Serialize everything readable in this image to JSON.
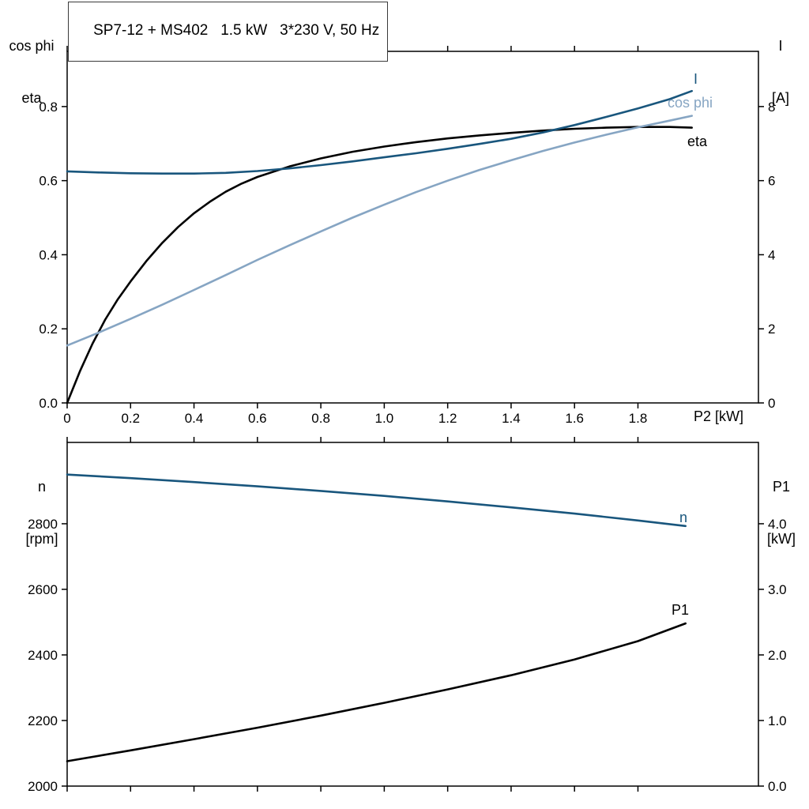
{
  "title": {
    "text": "SP7-12 + MS402   1.5 kW   3*230 V, 50 Hz"
  },
  "axis_titles": {
    "top_left_1": "cos phi",
    "top_left_2": "eta",
    "top_right_1": "I",
    "top_right_2": "[A]",
    "x_label": "P2 [kW]",
    "bottom_left_1": "n",
    "bottom_left_2": "[rpm]",
    "bottom_right_1": "P1",
    "bottom_right_2": "[kW]"
  },
  "curve_labels": {
    "i": "I",
    "cos_phi": "cos phi",
    "eta": "eta",
    "n": "n",
    "p1": "P1"
  },
  "colors": {
    "dark_blue": "#19567d",
    "light_blue": "#86a5c3",
    "black": "#000000",
    "frame": "#000000"
  },
  "chart_data": [
    {
      "type": "line",
      "grid": false,
      "xlim": [
        0,
        2.18
      ],
      "left_lim": [
        0,
        0.949
      ],
      "right_lim": [
        0,
        9.49
      ],
      "x_ticks": [
        {
          "v": 0,
          "label": "0"
        },
        {
          "v": 0.2,
          "label": "0.2"
        },
        {
          "v": 0.4,
          "label": "0.4"
        },
        {
          "v": 0.6,
          "label": "0.6"
        },
        {
          "v": 0.8,
          "label": "0.8"
        },
        {
          "v": 1.0,
          "label": "1.0"
        },
        {
          "v": 1.2,
          "label": "1.2"
        },
        {
          "v": 1.4,
          "label": "1.4"
        },
        {
          "v": 1.6,
          "label": "1.6"
        },
        {
          "v": 1.8,
          "label": "1.8"
        }
      ],
      "left_ticks": [
        {
          "v": 0.0,
          "label": "0.0"
        },
        {
          "v": 0.2,
          "label": "0.2"
        },
        {
          "v": 0.4,
          "label": "0.4"
        },
        {
          "v": 0.6,
          "label": "0.6"
        },
        {
          "v": 0.8,
          "label": "0.8"
        }
      ],
      "right_ticks": [
        {
          "v": 0,
          "label": "0"
        },
        {
          "v": 2,
          "label": "2"
        },
        {
          "v": 4,
          "label": "4"
        },
        {
          "v": 6,
          "label": "6"
        },
        {
          "v": 8,
          "label": "8"
        }
      ],
      "series": [
        {
          "name": "eta",
          "axis": "left",
          "color": "#000000",
          "x": [
            0,
            0.04,
            0.08,
            0.12,
            0.16,
            0.2,
            0.25,
            0.3,
            0.35,
            0.4,
            0.45,
            0.5,
            0.55,
            0.6,
            0.7,
            0.8,
            0.9,
            1.0,
            1.1,
            1.2,
            1.3,
            1.4,
            1.5,
            1.6,
            1.7,
            1.8,
            1.9,
            1.97
          ],
          "y": [
            0,
            0.085,
            0.16,
            0.225,
            0.28,
            0.328,
            0.383,
            0.432,
            0.475,
            0.512,
            0.543,
            0.57,
            0.592,
            0.61,
            0.638,
            0.66,
            0.678,
            0.692,
            0.704,
            0.714,
            0.722,
            0.729,
            0.735,
            0.74,
            0.743,
            0.745,
            0.745,
            0.743
          ]
        },
        {
          "name": "cos-phi",
          "axis": "left",
          "color": "#86a5c3",
          "x": [
            0,
            0.1,
            0.2,
            0.3,
            0.4,
            0.5,
            0.6,
            0.7,
            0.8,
            0.9,
            1.0,
            1.1,
            1.2,
            1.3,
            1.4,
            1.5,
            1.6,
            1.7,
            1.8,
            1.9,
            1.97
          ],
          "y": [
            0.155,
            0.19,
            0.227,
            0.265,
            0.305,
            0.345,
            0.386,
            0.425,
            0.463,
            0.5,
            0.535,
            0.569,
            0.6,
            0.629,
            0.655,
            0.68,
            0.703,
            0.724,
            0.744,
            0.762,
            0.775
          ]
        },
        {
          "name": "current-I",
          "axis": "right",
          "color": "#19567d",
          "x": [
            0,
            0.1,
            0.2,
            0.3,
            0.4,
            0.5,
            0.6,
            0.7,
            0.8,
            0.9,
            1.0,
            1.1,
            1.2,
            1.3,
            1.4,
            1.5,
            1.6,
            1.7,
            1.8,
            1.9,
            1.97
          ],
          "y": [
            6.25,
            6.22,
            6.2,
            6.19,
            6.19,
            6.21,
            6.26,
            6.33,
            6.42,
            6.52,
            6.63,
            6.74,
            6.86,
            6.99,
            7.13,
            7.3,
            7.5,
            7.72,
            7.95,
            8.2,
            8.42
          ]
        }
      ]
    },
    {
      "type": "line",
      "grid": false,
      "xlim": [
        0,
        2.18
      ],
      "left_lim": [
        2000,
        3048
      ],
      "right_lim": [
        0,
        5.24
      ],
      "x_ticks": [
        {
          "v": 0,
          "label": ""
        },
        {
          "v": 0.2,
          "label": ""
        },
        {
          "v": 0.4,
          "label": ""
        },
        {
          "v": 0.6,
          "label": ""
        },
        {
          "v": 0.8,
          "label": ""
        },
        {
          "v": 1.0,
          "label": ""
        },
        {
          "v": 1.2,
          "label": ""
        },
        {
          "v": 1.4,
          "label": ""
        },
        {
          "v": 1.6,
          "label": ""
        },
        {
          "v": 1.8,
          "label": ""
        }
      ],
      "left_ticks": [
        {
          "v": 2000,
          "label": "2000"
        },
        {
          "v": 2200,
          "label": "2200"
        },
        {
          "v": 2400,
          "label": "2400"
        },
        {
          "v": 2600,
          "label": "2600"
        },
        {
          "v": 2800,
          "label": "2800"
        }
      ],
      "right_ticks": [
        {
          "v": 0.0,
          "label": "0.0"
        },
        {
          "v": 1.0,
          "label": "1.0"
        },
        {
          "v": 2.0,
          "label": "2.0"
        },
        {
          "v": 3.0,
          "label": "3.0"
        },
        {
          "v": 4.0,
          "label": "4.0"
        }
      ],
      "series": [
        {
          "name": "speed-n",
          "axis": "left",
          "color": "#19567d",
          "x": [
            0,
            0.2,
            0.4,
            0.6,
            0.8,
            1.0,
            1.2,
            1.4,
            1.6,
            1.8,
            1.95
          ],
          "y": [
            2950,
            2939,
            2927,
            2914,
            2900,
            2885,
            2868,
            2850,
            2831,
            2810,
            2793
          ]
        },
        {
          "name": "input-power-P1",
          "axis": "right",
          "color": "#000000",
          "x": [
            0,
            0.2,
            0.4,
            0.6,
            0.8,
            1.0,
            1.2,
            1.4,
            1.6,
            1.8,
            1.95
          ],
          "y": [
            0.38,
            0.545,
            0.715,
            0.89,
            1.075,
            1.27,
            1.475,
            1.69,
            1.93,
            2.21,
            2.48
          ]
        }
      ]
    }
  ]
}
